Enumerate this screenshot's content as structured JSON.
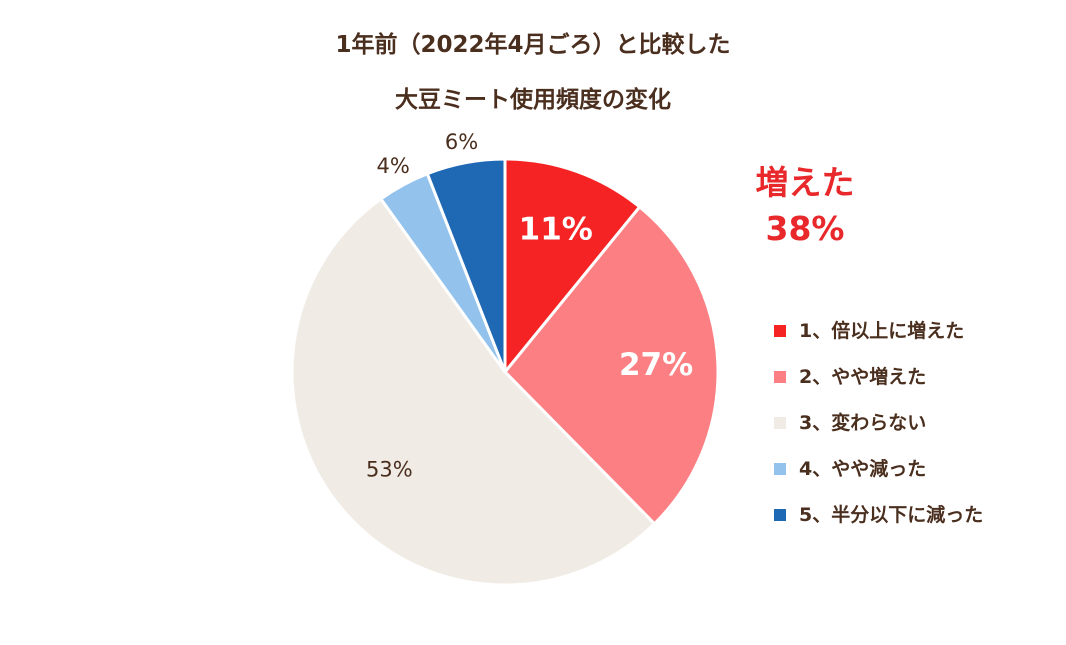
{
  "chart_data": {
    "type": "pie",
    "title_lines": [
      "1年前（2022年4月ごろ）と比較した",
      "大豆ミート使用頻度の変化"
    ],
    "slices": [
      {
        "name": "1、倍以上に増えた",
        "value": 11,
        "label": "11%",
        "color": "#f52324",
        "label_style": "inside"
      },
      {
        "name": "2、やや増えた",
        "value": 27,
        "label": "27%",
        "color": "#fc8083",
        "label_style": "inside"
      },
      {
        "name": "3、変わらない",
        "value": 53,
        "label": "53%",
        "color": "#f0ece5",
        "label_style": "outside-dark"
      },
      {
        "name": "4、やや減った",
        "value": 4,
        "label": "4%",
        "color": "#93c3ed",
        "label_style": "outside"
      },
      {
        "name": "5、半分以下に減った",
        "value": 6,
        "label": "6%",
        "color": "#1f68b4",
        "label_style": "outside"
      }
    ],
    "callout": {
      "line1": "増えた",
      "line2": "38%",
      "color": "#e8282b"
    },
    "legend_position": "right"
  }
}
